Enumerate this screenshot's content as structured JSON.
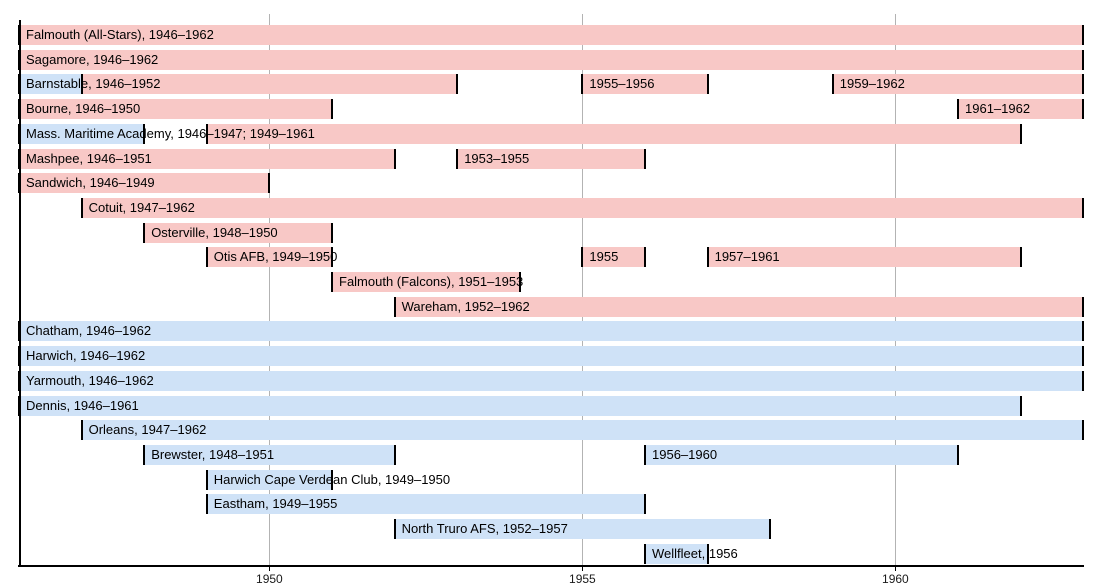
{
  "chart_data": {
    "type": "timeline-gantt",
    "title": "",
    "x_axis": {
      "range_years": [
        1946,
        1963
      ],
      "ticks": [
        {
          "year": 1950,
          "label": "1950"
        },
        {
          "year": 1955,
          "label": "1955"
        },
        {
          "year": 1960,
          "label": "1960"
        }
      ],
      "grid": true
    },
    "legend": "none",
    "colors": {
      "pink": "#f8c8c6",
      "blue": "#cfe2f7",
      "segment_border": "#000000",
      "gridline": "#b3b3b3",
      "axis": "#000000",
      "text": "#000000"
    },
    "rows": [
      {
        "name": "Falmouth (All-Stars)",
        "label": "Falmouth (All-Stars), 1946–1962",
        "segments": [
          {
            "start": 1946,
            "end": 1962,
            "color": "pink"
          }
        ]
      },
      {
        "name": "Sagamore",
        "label": "Sagamore, 1946–1962",
        "segments": [
          {
            "start": 1946,
            "end": 1962,
            "color": "pink"
          }
        ]
      },
      {
        "name": "Barnstable",
        "label": "Barnstable, 1946–1952",
        "segments": [
          {
            "start": 1946,
            "end": 1946,
            "color": "blue"
          },
          {
            "start": 1947,
            "end": 1952,
            "color": "pink"
          },
          {
            "start": 1955,
            "end": 1956,
            "color": "pink",
            "label": "1955–1956"
          },
          {
            "start": 1959,
            "end": 1962,
            "color": "pink",
            "label": "1959–1962"
          }
        ]
      },
      {
        "name": "Bourne",
        "label": "Bourne, 1946–1950",
        "segments": [
          {
            "start": 1946,
            "end": 1950,
            "color": "pink"
          },
          {
            "start": 1961,
            "end": 1962,
            "color": "pink",
            "label": "1961–1962"
          }
        ]
      },
      {
        "name": "Mass. Maritime Academy",
        "label": "Mass. Maritime Academy, 1946–1947; 1949–1961",
        "segments": [
          {
            "start": 1946,
            "end": 1947,
            "color": "blue"
          },
          {
            "start": 1949,
            "end": 1961,
            "color": "pink"
          }
        ]
      },
      {
        "name": "Mashpee",
        "label": "Mashpee, 1946–1951",
        "segments": [
          {
            "start": 1946,
            "end": 1951,
            "color": "pink"
          },
          {
            "start": 1953,
            "end": 1955,
            "color": "pink",
            "label": "1953–1955"
          }
        ]
      },
      {
        "name": "Sandwich",
        "label": "Sandwich, 1946–1949",
        "segments": [
          {
            "start": 1946,
            "end": 1949,
            "color": "pink"
          }
        ]
      },
      {
        "name": "Cotuit",
        "label": "Cotuit, 1947–1962",
        "segments": [
          {
            "start": 1947,
            "end": 1962,
            "color": "pink"
          }
        ]
      },
      {
        "name": "Osterville",
        "label": "Osterville, 1948–1950",
        "segments": [
          {
            "start": 1948,
            "end": 1950,
            "color": "pink"
          }
        ]
      },
      {
        "name": "Otis AFB",
        "label": "Otis AFB, 1949–1950",
        "segments": [
          {
            "start": 1949,
            "end": 1950,
            "color": "pink"
          },
          {
            "start": 1955,
            "end": 1955,
            "color": "pink",
            "label": "1955"
          },
          {
            "start": 1957,
            "end": 1961,
            "color": "pink",
            "label": "1957–1961"
          }
        ]
      },
      {
        "name": "Falmouth (Falcons)",
        "label": "Falmouth (Falcons), 1951–1953",
        "segments": [
          {
            "start": 1951,
            "end": 1953,
            "color": "pink"
          }
        ]
      },
      {
        "name": "Wareham",
        "label": "Wareham, 1952–1962",
        "segments": [
          {
            "start": 1952,
            "end": 1962,
            "color": "pink"
          }
        ]
      },
      {
        "name": "Chatham",
        "label": "Chatham, 1946–1962",
        "segments": [
          {
            "start": 1946,
            "end": 1962,
            "color": "blue"
          }
        ]
      },
      {
        "name": "Harwich",
        "label": "Harwich, 1946–1962",
        "segments": [
          {
            "start": 1946,
            "end": 1962,
            "color": "blue"
          }
        ]
      },
      {
        "name": "Yarmouth",
        "label": "Yarmouth, 1946–1962",
        "segments": [
          {
            "start": 1946,
            "end": 1962,
            "color": "blue"
          }
        ]
      },
      {
        "name": "Dennis",
        "label": "Dennis, 1946–1961",
        "segments": [
          {
            "start": 1946,
            "end": 1961,
            "color": "blue"
          }
        ]
      },
      {
        "name": "Orleans",
        "label": "Orleans, 1947–1962",
        "segments": [
          {
            "start": 1947,
            "end": 1962,
            "color": "blue"
          }
        ]
      },
      {
        "name": "Brewster",
        "label": "Brewster, 1948–1951",
        "segments": [
          {
            "start": 1948,
            "end": 1951,
            "color": "blue"
          },
          {
            "start": 1956,
            "end": 1960,
            "color": "blue",
            "label": "1956–1960"
          }
        ]
      },
      {
        "name": "Harwich Cape Verdean Club",
        "label": "Harwich Cape Verdean Club, 1949–1950",
        "segments": [
          {
            "start": 1949,
            "end": 1950,
            "color": "blue"
          }
        ]
      },
      {
        "name": "Eastham",
        "label": "Eastham, 1949–1955",
        "segments": [
          {
            "start": 1949,
            "end": 1955,
            "color": "blue"
          }
        ]
      },
      {
        "name": "North Truro AFS",
        "label": "North Truro AFS, 1952–1957",
        "segments": [
          {
            "start": 1952,
            "end": 1957,
            "color": "blue"
          }
        ]
      },
      {
        "name": "Wellfleet",
        "label": "Wellfleet, 1956",
        "segments": [
          {
            "start": 1956,
            "end": 1956,
            "color": "blue"
          }
        ]
      }
    ]
  }
}
